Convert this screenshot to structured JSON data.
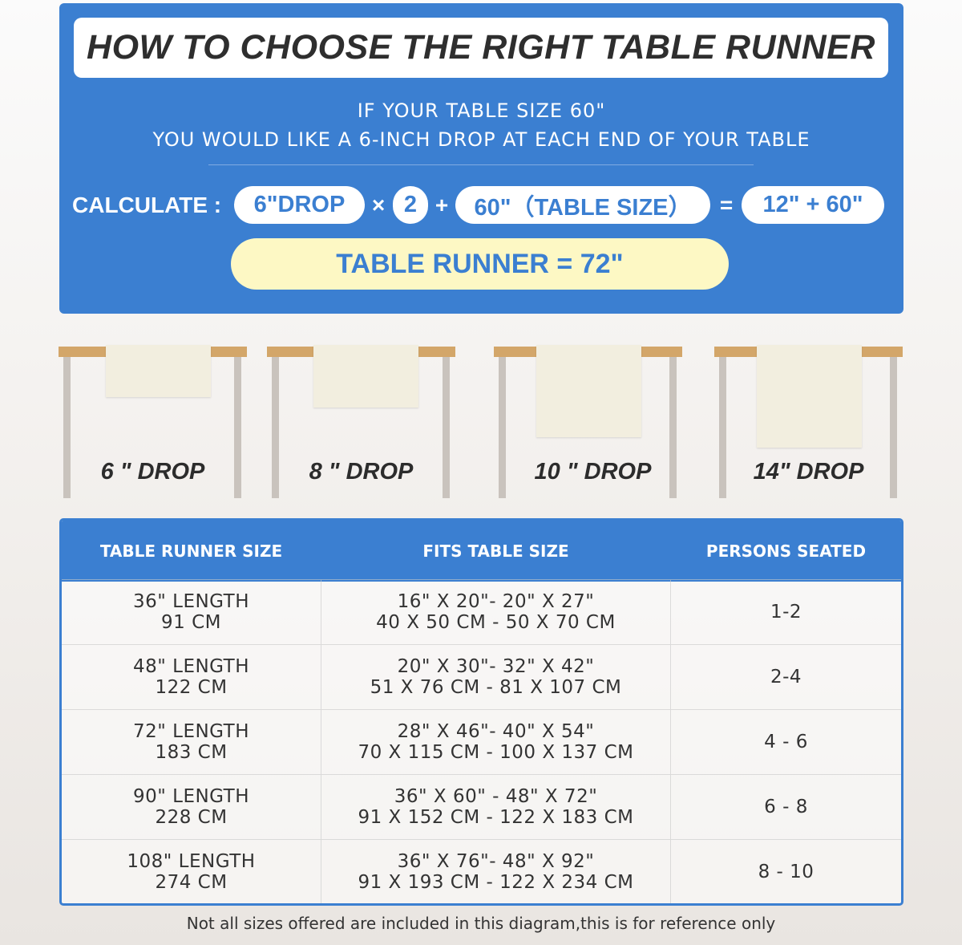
{
  "header": {
    "title": "HOW TO CHOOSE THE RIGHT TABLE RUNNER",
    "line1": "IF YOUR TABLE SIZE 60\"",
    "line2": "YOU WOULD LIKE A 6-INCH DROP AT EACH END OF YOUR TABLE"
  },
  "calc": {
    "label": "CALCULATE :",
    "drop": "6\"DROP",
    "times": "×",
    "multiplier": "2",
    "plus": "+",
    "table_size": "60\"（TABLE SIZE）",
    "equals": "=",
    "sum": "12\" + 60\"",
    "result": "TABLE RUNNER = 72\""
  },
  "drops": [
    {
      "label": "6 \" DROP"
    },
    {
      "label": "8 \" DROP"
    },
    {
      "label": "10 \" DROP"
    },
    {
      "label": "14\" DROP"
    }
  ],
  "table": {
    "headers": [
      "TABLE RUNNER SIZE",
      "FITS TABLE SIZE",
      "PERSONS SEATED"
    ],
    "rows": [
      {
        "size": [
          "36\" LENGTH",
          "91 CM"
        ],
        "fits": [
          "16\" X 20\"- 20\" X 27\"",
          "40 X 50 CM - 50 X 70 CM"
        ],
        "persons": "1-2"
      },
      {
        "size": [
          "48\" LENGTH",
          "122 CM"
        ],
        "fits": [
          "20\" X 30\"- 32\" X 42\"",
          "51 X 76 CM - 81 X 107 CM"
        ],
        "persons": "2-4"
      },
      {
        "size": [
          "72\" LENGTH",
          "183 CM"
        ],
        "fits": [
          "28\" X 46\"- 40\" X 54\"",
          "70 X 115 CM - 100 X 137 CM"
        ],
        "persons": "4 - 6"
      },
      {
        "size": [
          "90\" LENGTH",
          "228 CM"
        ],
        "fits": [
          "36\" X 60\" - 48\" X 72\"",
          "91 X 152 CM - 122 X 183 CM"
        ],
        "persons": "6 - 8"
      },
      {
        "size": [
          "108\" LENGTH",
          "274 CM"
        ],
        "fits": [
          "36\" X 76\"- 48\" X 92\"",
          "91 X 193 CM - 122 X 234 CM"
        ],
        "persons": "8 - 10"
      }
    ]
  },
  "footer": "Not all sizes offered are included in this diagram,this is for reference only",
  "colors": {
    "brand_blue": "#3b7fd1",
    "result_yellow": "#fdf8c4",
    "table_wood": "#d3a669"
  }
}
